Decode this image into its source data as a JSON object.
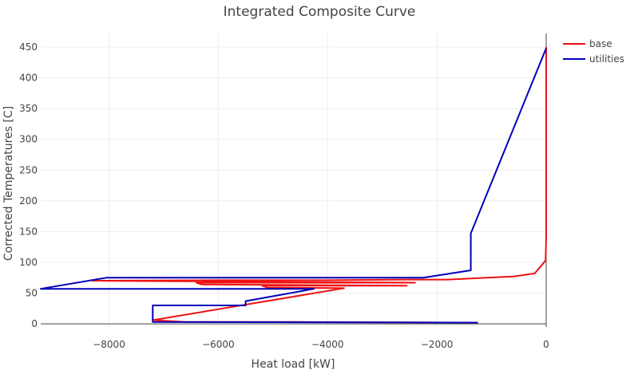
{
  "chart_data": {
    "type": "line",
    "title": "Integrated Composite Curve",
    "xlabel": "Heat load [kW]",
    "ylabel": "Corrected Temperatures [C]",
    "xlim": [
      -9250,
      0
    ],
    "ylim": [
      -5,
      472
    ],
    "xticks": [
      -8000,
      -6000,
      -4000,
      -2000,
      0
    ],
    "xtick_labels": [
      "−8000",
      "−6000",
      "−4000",
      "−2000",
      "0"
    ],
    "yticks": [
      0,
      50,
      100,
      150,
      200,
      250,
      300,
      350,
      400,
      450
    ],
    "ytick_labels": [
      "0",
      "50",
      "100",
      "150",
      "200",
      "250",
      "300",
      "350",
      "400",
      "450"
    ],
    "grid": true,
    "legend_position": "top-right",
    "series": [
      {
        "name": "base",
        "color": "#ee1111",
        "points": [
          [
            0,
            450
          ],
          [
            0,
            150
          ],
          [
            0,
            140
          ],
          [
            -10,
            103
          ],
          [
            -210,
            82
          ],
          [
            -600,
            77
          ],
          [
            -1800,
            72
          ],
          [
            -2400,
            72
          ],
          [
            -4000,
            71
          ],
          [
            -6000,
            71
          ],
          [
            -8300,
            70
          ],
          [
            -2400,
            67
          ],
          [
            -6400,
            67
          ],
          [
            -6300,
            64
          ],
          [
            -2550,
            62
          ],
          [
            -5200,
            62
          ],
          [
            -5100,
            59
          ],
          [
            -3700,
            58
          ],
          [
            -7200,
            6
          ],
          [
            -6600,
            3
          ],
          [
            -4500,
            3
          ],
          [
            -1250,
            2
          ]
        ]
      },
      {
        "name": "utilities",
        "color": "#0000bb",
        "points": [
          [
            0,
            448
          ],
          [
            -1380,
            147
          ],
          [
            -1380,
            87
          ],
          [
            -2250,
            75
          ],
          [
            -8050,
            75
          ],
          [
            -9250,
            57
          ],
          [
            -4250,
            57
          ],
          [
            -5500,
            37
          ],
          [
            -5500,
            30
          ],
          [
            -7200,
            30
          ],
          [
            -7200,
            3
          ],
          [
            -1250,
            2
          ]
        ]
      }
    ]
  }
}
